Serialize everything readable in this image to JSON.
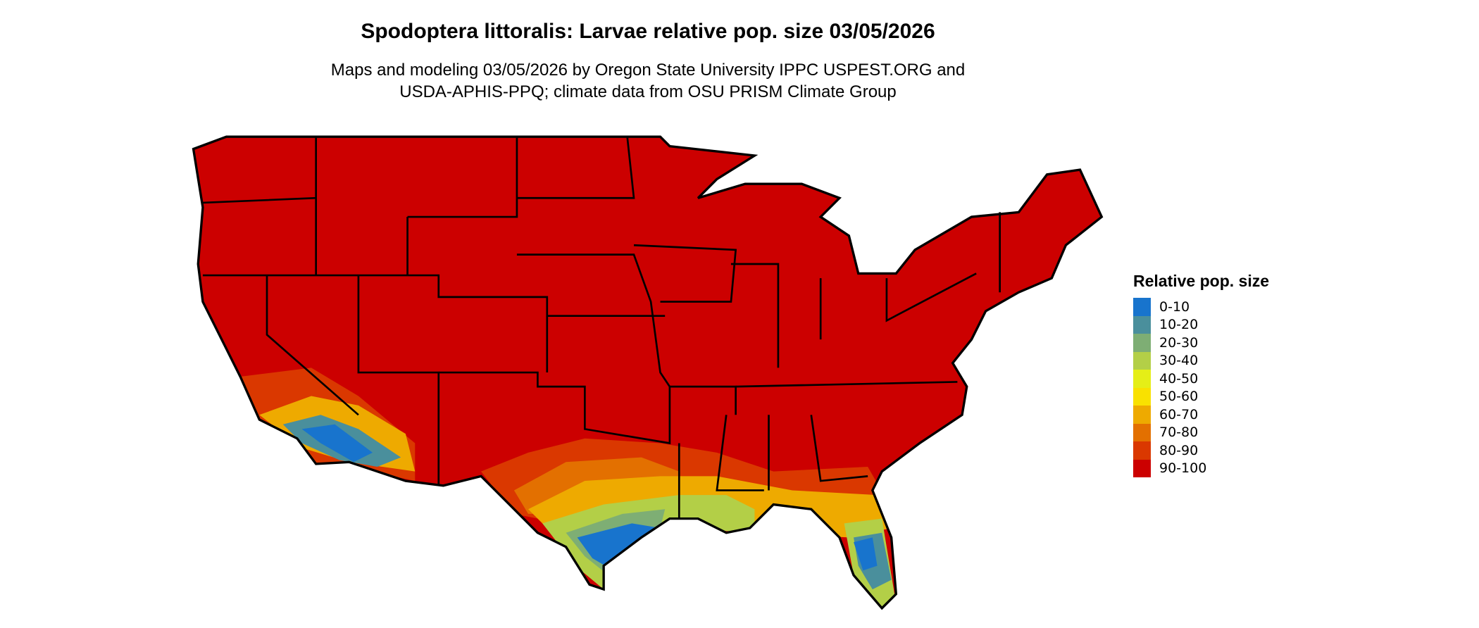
{
  "title": "Spodoptera littoralis: Larvae relative pop. size 03/05/2026",
  "subtitle_line1": "Maps and modeling 03/05/2026 by Oregon State University IPPC USPEST.ORG and",
  "subtitle_line2": "USDA-APHIS-PPQ; climate data from OSU PRISM Climate Group",
  "legend": {
    "title": "Relative pop. size",
    "items": [
      {
        "label": "0-10",
        "color": "#1874CD"
      },
      {
        "label": "10-20",
        "color": "#4A8F9C"
      },
      {
        "label": "20-30",
        "color": "#7EAE74"
      },
      {
        "label": "30-40",
        "color": "#B3CF47"
      },
      {
        "label": "40-50",
        "color": "#E5EE17"
      },
      {
        "label": "50-60",
        "color": "#F9E100"
      },
      {
        "label": "60-70",
        "color": "#EEAA00"
      },
      {
        "label": "70-80",
        "color": "#E37000"
      },
      {
        "label": "80-90",
        "color": "#DA3800"
      },
      {
        "label": "90-100",
        "color": "#CC0000"
      }
    ]
  }
}
